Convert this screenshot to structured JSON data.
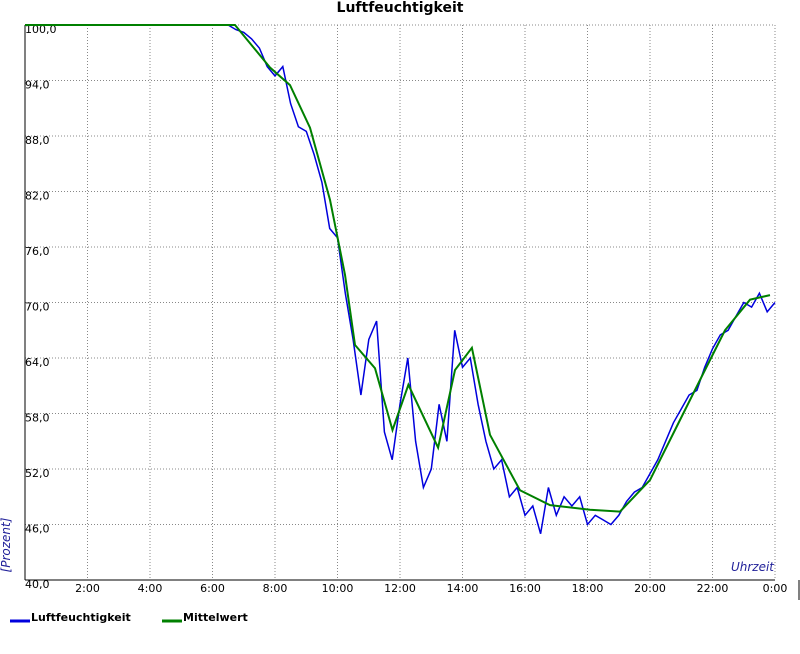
{
  "chart_data": {
    "type": "line",
    "title": "Luftfeuchtigkeit",
    "y_label": "[Prozent]",
    "x_label": "Uhrzeit",
    "xlim": [
      0,
      24
    ],
    "ylim": [
      40,
      100
    ],
    "grid": true,
    "legend": "bottom",
    "xticks": [
      {
        "value": 2,
        "label": "2:00"
      },
      {
        "value": 4,
        "label": "4:00"
      },
      {
        "value": 6,
        "label": "6:00"
      },
      {
        "value": 8,
        "label": "8:00"
      },
      {
        "value": 10,
        "label": "10:00"
      },
      {
        "value": 12,
        "label": "12:00"
      },
      {
        "value": 14,
        "label": "14:00"
      },
      {
        "value": 16,
        "label": "16:00"
      },
      {
        "value": 18,
        "label": "18:00"
      },
      {
        "value": 20,
        "label": "20:00"
      },
      {
        "value": 22,
        "label": "22:00"
      },
      {
        "value": 24,
        "label": "0:00"
      }
    ],
    "yticks": [
      {
        "value": 40,
        "label": "40,0"
      },
      {
        "value": 46,
        "label": "46,0"
      },
      {
        "value": 52,
        "label": "52,0"
      },
      {
        "value": 58,
        "label": "58,0"
      },
      {
        "value": 64,
        "label": "64,0"
      },
      {
        "value": 70,
        "label": "70,0"
      },
      {
        "value": 76,
        "label": "76,0"
      },
      {
        "value": 82,
        "label": "82,0"
      },
      {
        "value": 88,
        "label": "88,0"
      },
      {
        "value": 94,
        "label": "94,0"
      },
      {
        "value": 100,
        "label": "100,0"
      }
    ],
    "series": [
      {
        "name": "Luftfeuchtigkeit",
        "color": "#0000dd",
        "x": [
          0,
          6.5,
          6.75,
          7,
          7.25,
          7.5,
          7.75,
          8,
          8.25,
          8.5,
          8.75,
          9,
          9.25,
          9.5,
          9.75,
          10,
          10.25,
          10.5,
          10.75,
          11,
          11.25,
          11.5,
          11.75,
          12,
          12.25,
          12.5,
          12.75,
          13,
          13.25,
          13.5,
          13.75,
          14,
          14.25,
          14.5,
          14.75,
          15,
          15.25,
          15.5,
          15.75,
          16,
          16.25,
          16.5,
          16.75,
          17,
          17.25,
          17.5,
          17.75,
          18,
          18.25,
          18.5,
          18.75,
          19,
          19.25,
          19.5,
          19.75,
          20,
          20.25,
          20.5,
          20.75,
          21,
          21.25,
          21.5,
          21.75,
          22,
          22.25,
          22.5,
          22.75,
          23,
          23.25,
          23.5,
          23.75,
          24
        ],
        "values": [
          100,
          100,
          99.5,
          99.2,
          98.5,
          97.5,
          95.5,
          94.5,
          95.5,
          91.5,
          89,
          88.5,
          86,
          83,
          78,
          77,
          71,
          66,
          60,
          66,
          68,
          56,
          53,
          59,
          64,
          55,
          50,
          52,
          59,
          55,
          67,
          63,
          64,
          59,
          55,
          52,
          53,
          49,
          50,
          47,
          48,
          45,
          50,
          47,
          49,
          48,
          49,
          46,
          47,
          46.5,
          46,
          47,
          48.5,
          49.5,
          50,
          51.5,
          53,
          55,
          57,
          58.5,
          60,
          60.5,
          63,
          65,
          66.5,
          67,
          68.5,
          70,
          69.5,
          71,
          69,
          70
        ]
      },
      {
        "name": "Mittelwert",
        "color": "#008000",
        "x": [
          0,
          6.72,
          7.84,
          8.48,
          9.12,
          9.76,
          10.24,
          10.56,
          11.2,
          11.76,
          12.27,
          13.22,
          13.76,
          14.3,
          14.88,
          15.84,
          16.8,
          18.08,
          19.04,
          20,
          20.96,
          21.76,
          22.4,
          23.2,
          23.84
        ],
        "values": [
          100,
          100,
          95.4,
          93.5,
          88.9,
          81.1,
          73,
          65.4,
          62.9,
          56.2,
          61.1,
          54.3,
          62.7,
          65.1,
          55.7,
          49.7,
          48.1,
          47.6,
          47.4,
          50.8,
          57.3,
          62.7,
          67,
          70.3,
          70.8
        ]
      }
    ]
  }
}
